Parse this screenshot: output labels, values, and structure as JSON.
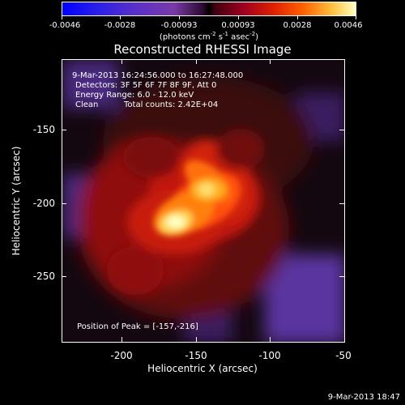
{
  "colorbar": {
    "tick_labels": [
      "-0.0046",
      "-0.0028",
      "-0.00093",
      "0.00093",
      "0.0028",
      "0.0046"
    ],
    "units_prefix": "(photons cm",
    "units_sup1": "-2",
    "units_mid": " s",
    "units_sup2": "-1",
    "units_mid2": " asec",
    "units_sup3": "-2",
    "units_suffix": ")"
  },
  "title": "Reconstructed RHESSI Image",
  "info": {
    "time": "9-Mar-2013 16:24:56.000 to 16:27:48.000",
    "detectors": "Detectors: 3F 5F 6F 7F 8F 9F, Att 0",
    "energy": "Energy Range: 6.0 - 12.0 keV",
    "clean": "Clean",
    "counts": "Total counts: 2.42E+04"
  },
  "peak": "Position of Peak = [-157,-216]",
  "axes": {
    "xlabel": "Heliocentric X (arcsec)",
    "ylabel": "Heliocentric Y (arcsec)",
    "xticks": [
      "-200",
      "-150",
      "-100",
      "-50"
    ],
    "yticks": [
      "-150",
      "-200",
      "-250"
    ],
    "xlim": [
      -240,
      -50
    ],
    "ylim": [
      -295,
      -105
    ]
  },
  "datestamp": "9-Mar-2013 18:47",
  "colors": {
    "low": "#0000ff",
    "mid_negative": "#8040b0",
    "zero": "#000000",
    "mid_positive": "#e02000",
    "high": "#ffffa0"
  }
}
